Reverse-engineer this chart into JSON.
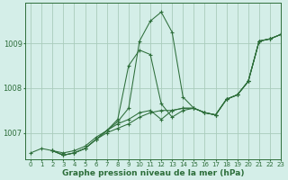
{
  "bg_color": "#d4eee8",
  "grid_color": "#aaccbb",
  "line_color": "#2d6e3a",
  "xlabel": "Graphe pression niveau de la mer (hPa)",
  "xlabel_fontsize": 6.5,
  "xlim": [
    -0.5,
    23
  ],
  "ylim": [
    1006.4,
    1009.9
  ],
  "yticks": [
    1007,
    1008,
    1009
  ],
  "xticks": [
    0,
    1,
    2,
    3,
    4,
    5,
    6,
    7,
    8,
    9,
    10,
    11,
    12,
    13,
    14,
    15,
    16,
    17,
    18,
    19,
    20,
    21,
    22,
    23
  ],
  "series": [
    {
      "x": [
        0,
        1,
        2,
        3,
        4,
        5,
        6,
        7,
        8,
        9,
        10,
        11,
        12,
        13,
        14,
        15,
        16,
        17,
        18,
        19,
        20,
        21,
        22,
        23
      ],
      "y": [
        1006.55,
        1006.65,
        1006.6,
        1006.55,
        1006.6,
        1006.7,
        1006.9,
        1007.05,
        1007.25,
        1007.55,
        1009.05,
        1009.5,
        1009.7,
        1009.25,
        1007.8,
        1007.55,
        1007.45,
        1007.4,
        1007.75,
        1007.85,
        1008.15,
        1009.05,
        1009.1,
        1009.2
      ]
    },
    {
      "x": [
        2,
        3,
        4,
        5,
        6,
        7,
        8,
        9,
        10,
        11,
        12,
        13,
        14,
        15,
        16,
        17,
        18,
        19,
        20,
        21,
        22,
        23
      ],
      "y": [
        1006.6,
        1006.5,
        1006.55,
        1006.65,
        1006.85,
        1007.05,
        1007.3,
        1008.5,
        1008.85,
        1008.75,
        1007.65,
        1007.35,
        1007.5,
        1007.55,
        1007.45,
        1007.4,
        1007.75,
        1007.85,
        1008.15,
        1009.05,
        1009.1,
        1009.2
      ]
    },
    {
      "x": [
        2,
        3,
        4,
        5,
        6,
        7,
        8,
        9,
        10,
        11,
        12,
        13,
        14,
        15,
        16,
        17,
        18,
        19,
        20,
        21,
        22,
        23
      ],
      "y": [
        1006.6,
        1006.5,
        1006.55,
        1006.65,
        1006.85,
        1007.05,
        1007.2,
        1007.3,
        1007.45,
        1007.5,
        1007.3,
        1007.5,
        1007.55,
        1007.55,
        1007.45,
        1007.4,
        1007.75,
        1007.85,
        1008.15,
        1009.05,
        1009.1,
        1009.2
      ]
    },
    {
      "x": [
        2,
        3,
        4,
        5,
        6,
        7,
        8,
        9,
        10,
        11,
        12,
        13,
        14,
        15,
        16,
        17,
        18,
        19,
        20,
        21,
        22,
        23
      ],
      "y": [
        1006.6,
        1006.5,
        1006.55,
        1006.65,
        1006.85,
        1007.0,
        1007.1,
        1007.2,
        1007.35,
        1007.45,
        1007.5,
        1007.5,
        1007.55,
        1007.55,
        1007.45,
        1007.4,
        1007.75,
        1007.85,
        1008.15,
        1009.05,
        1009.1,
        1009.2
      ]
    }
  ]
}
